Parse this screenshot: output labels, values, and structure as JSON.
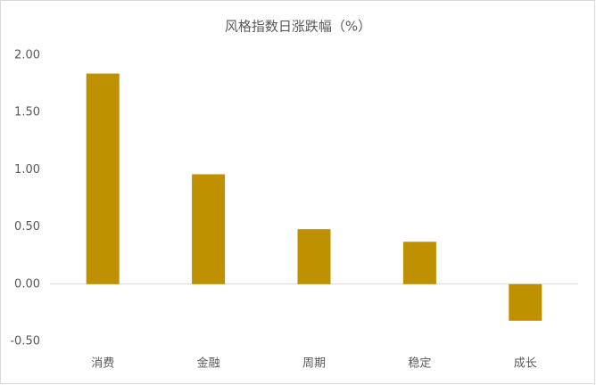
{
  "chart_data": {
    "type": "bar",
    "title": "风格指数日涨跌幅（%）",
    "categories": [
      "消费",
      "金融",
      "周期",
      "稳定",
      "成长"
    ],
    "values": [
      1.84,
      0.96,
      0.48,
      0.37,
      -0.32
    ],
    "color": "#bf9000",
    "ylim": [
      -0.5,
      2.0
    ],
    "yticks": [
      {
        "value": -0.5,
        "label": "-0.50"
      },
      {
        "value": 0,
        "label": "0.00"
      },
      {
        "value": 0.5,
        "label": "0.50"
      },
      {
        "value": 1.0,
        "label": "1.00"
      },
      {
        "value": 1.5,
        "label": "1.50"
      },
      {
        "value": 2.0,
        "label": "2.00"
      }
    ],
    "grid": false
  }
}
